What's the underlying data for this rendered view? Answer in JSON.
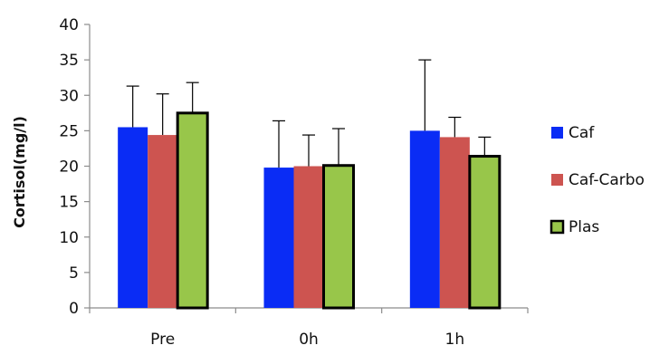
{
  "chart_data": {
    "type": "bar",
    "title": "",
    "xlabel": "",
    "ylabel": "Cortisol(mg/l)",
    "ylim": [
      0,
      40
    ],
    "yticks": [
      0,
      5,
      10,
      15,
      20,
      25,
      30,
      35,
      40
    ],
    "categories": [
      "Pre",
      "0h",
      "1h"
    ],
    "series": [
      {
        "name": "Caf",
        "color": "#0a2cf5",
        "values": [
          25.5,
          19.8,
          25.0
        ],
        "errors": [
          5.8,
          6.6,
          10.0
        ]
      },
      {
        "name": "Caf-Carbo",
        "color": "#cd5450",
        "values": [
          24.4,
          20.0,
          24.1
        ],
        "errors": [
          5.8,
          4.4,
          2.8
        ]
      },
      {
        "name": "Plas",
        "color": "#98c64a",
        "stroke": "#000000",
        "values": [
          27.5,
          20.1,
          21.4
        ],
        "errors": [
          4.3,
          5.2,
          2.7
        ]
      }
    ],
    "legend_position": "right",
    "grid": false
  }
}
